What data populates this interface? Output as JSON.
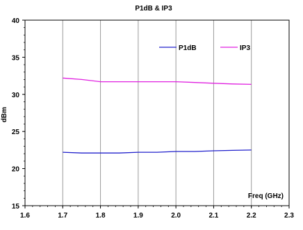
{
  "colors": {
    "P1dB": "#2020cc",
    "IP3": "#e020e0"
  },
  "chart_data": {
    "type": "line",
    "title": "P1dB & IP3",
    "xlabel": "Freq (GHz)",
    "ylabel": "dBm",
    "xlim": [
      1.6,
      2.3
    ],
    "ylim": [
      15,
      40
    ],
    "x_ticks": [
      "1.6",
      "1.7",
      "1.8",
      "1.9",
      "2.0",
      "2.1",
      "2.2",
      "2.3"
    ],
    "y_ticks": [
      "15",
      "20",
      "25",
      "30",
      "35",
      "40"
    ],
    "grid": "vertical",
    "legend_position": "top-right",
    "series": [
      {
        "name": "P1dB",
        "x": [
          1.7,
          1.75,
          1.8,
          1.85,
          1.9,
          1.95,
          2.0,
          2.05,
          2.1,
          2.15,
          2.2
        ],
        "y": [
          22.2,
          22.1,
          22.1,
          22.1,
          22.2,
          22.2,
          22.3,
          22.3,
          22.4,
          22.45,
          22.5
        ]
      },
      {
        "name": "IP3",
        "x": [
          1.7,
          1.75,
          1.8,
          1.85,
          1.9,
          1.95,
          2.0,
          2.05,
          2.1,
          2.15,
          2.2
        ],
        "y": [
          32.2,
          32.0,
          31.7,
          31.7,
          31.7,
          31.7,
          31.7,
          31.6,
          31.5,
          31.4,
          31.35
        ]
      }
    ]
  }
}
